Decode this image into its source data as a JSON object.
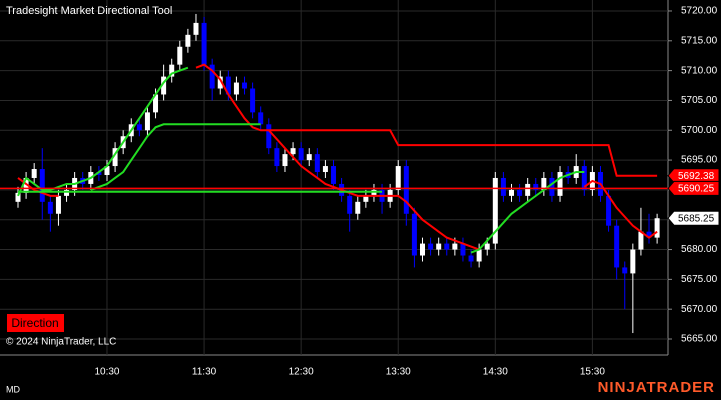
{
  "chart_data": {
    "type": "candlestick",
    "title": "Tradesight Market Directional Tool",
    "x": [
      null,
      null,
      null,
      null,
      null,
      null,
      null,
      null,
      null,
      null,
      null,
      "10:30",
      null,
      null,
      null,
      null,
      null,
      null,
      null,
      null,
      null,
      null,
      null,
      "11:30",
      null,
      null,
      null,
      null,
      null,
      null,
      null,
      null,
      null,
      null,
      null,
      "12:30",
      null,
      null,
      null,
      null,
      null,
      null,
      null,
      null,
      null,
      null,
      null,
      "13:30",
      null,
      null,
      null,
      null,
      null,
      null,
      null,
      null,
      null,
      null,
      null,
      "14:30",
      null,
      null,
      null,
      null,
      null,
      null,
      null,
      null,
      null,
      null,
      null,
      "15:30",
      null,
      null,
      null,
      null,
      null,
      null,
      null,
      null
    ],
    "open": [
      5688,
      5689.5,
      5692,
      5693.5,
      5688,
      5686,
      5689,
      5690,
      5692,
      5691,
      5693,
      5692.5,
      5694,
      5697,
      5699,
      5701,
      5700,
      5703,
      5706,
      5709,
      5711,
      5714,
      5716,
      5718,
      5711,
      5707,
      5709,
      5706,
      5708,
      5707,
      5703,
      5701,
      5697,
      5694,
      5696,
      5697,
      5695,
      5696,
      5693,
      5694,
      5691,
      5689,
      5686,
      5688,
      5689,
      5690,
      5688,
      5690,
      5694,
      5686,
      5679,
      5681,
      5680,
      5681,
      5680,
      5681,
      5679,
      5678,
      5680,
      5681,
      5692,
      5689,
      5690,
      5689,
      5691,
      5690,
      5692,
      5689,
      5693,
      5692,
      5694,
      5690,
      5693,
      5689,
      5684,
      5677,
      5676,
      5680,
      5683,
      5682
    ],
    "high": [
      5690.5,
      5693,
      5694.5,
      5697,
      5689,
      5690,
      5691,
      5693,
      5693,
      5694,
      5694,
      5695,
      5698,
      5700,
      5702,
      5702,
      5704,
      5707,
      5711,
      5712,
      5715,
      5717,
      5719.5,
      5719,
      5712,
      5710,
      5710,
      5709,
      5709,
      5708,
      5704,
      5702,
      5698,
      5697,
      5698,
      5698,
      5697,
      5697,
      5695,
      5695,
      5692,
      5690,
      5689,
      5690,
      5691,
      5691,
      5691,
      5695,
      5695,
      5687,
      5682,
      5682,
      5682,
      5682,
      5682,
      5682,
      5680,
      5681,
      5682,
      5693,
      5693,
      5691,
      5691,
      5692,
      5692,
      5693,
      5693,
      5694,
      5694,
      5696,
      5695,
      5694,
      5694,
      5690,
      5685,
      5678,
      5681,
      5687,
      5686,
      5686
    ],
    "low": [
      5687,
      5688.5,
      5691,
      5685,
      5683,
      5684,
      5688,
      5689,
      5690,
      5690,
      5691.5,
      5691.5,
      5693,
      5696,
      5698,
      5699,
      5699,
      5702,
      5705,
      5708,
      5710,
      5713,
      5715,
      5710,
      5705,
      5706,
      5705,
      5705,
      5706,
      5702,
      5700,
      5696,
      5693,
      5693,
      5695,
      5694,
      5694,
      5692,
      5692,
      5690,
      5688,
      5683,
      5685,
      5687,
      5688,
      5686,
      5687,
      5689,
      5684,
      5677,
      5678,
      5679,
      5679,
      5679,
      5679,
      5678,
      5677,
      5677,
      5679,
      5680,
      5688,
      5688,
      5688,
      5688,
      5689,
      5689,
      5688,
      5688,
      5691,
      5691,
      5689,
      5689,
      5688,
      5683,
      5675,
      5670,
      5666,
      5679,
      5681,
      5681
    ],
    "close": [
      5689.5,
      5692,
      5693.5,
      5688,
      5686,
      5689,
      5690,
      5692,
      5691,
      5693,
      5692.5,
      5694,
      5697,
      5699,
      5701,
      5700,
      5703,
      5706,
      5709,
      5711,
      5714,
      5716,
      5718,
      5711,
      5707,
      5709,
      5706,
      5708,
      5707,
      5703,
      5701,
      5697,
      5694,
      5696,
      5697,
      5695,
      5696,
      5693,
      5694,
      5691,
      5689,
      5686,
      5688,
      5689,
      5690,
      5688,
      5690,
      5694,
      5686,
      5679,
      5681,
      5680,
      5681,
      5680,
      5681,
      5679,
      5678,
      5680,
      5681,
      5692,
      5689,
      5690,
      5689,
      5691,
      5690,
      5692,
      5689,
      5693,
      5692,
      5694,
      5690,
      5693,
      5689,
      5684,
      5677,
      5676,
      5680,
      5683,
      5682,
      5685.25
    ],
    "up_color": "#ffffff",
    "down_color": "#0000ff",
    "lines": [
      {
        "color": "#ff0000",
        "values": [
          null,
          null,
          null,
          null,
          null,
          null,
          null,
          null,
          null,
          null,
          null,
          null,
          null,
          null,
          null,
          null,
          null,
          null,
          null,
          null,
          null,
          null,
          5710.5,
          5711,
          5710,
          5708.5,
          5706,
          5704,
          5702,
          5700.5,
          5700,
          5700,
          5700,
          5700,
          5700,
          5700,
          5700,
          5700,
          5700,
          5700,
          5700,
          5700,
          5700,
          5700,
          5700,
          5700,
          5700,
          5697.5,
          5697.5,
          5697.5,
          5697.5,
          5697.5,
          5697.5,
          5697.5,
          5697.5,
          5697.5,
          5697.5,
          5697.5,
          5697.5,
          5697.5,
          5697.5,
          5697.5,
          5697.5,
          5697.5,
          5697.5,
          5697.5,
          5697.5,
          5697.5,
          5697.5,
          5697.5,
          5697.5,
          5697.5,
          5697.5,
          5697.5,
          5692.38,
          5692.38,
          5692.38,
          5692.38,
          5692.38,
          5692.38
        ]
      },
      {
        "color": "#ff0000",
        "values": [
          5692,
          5691,
          5690,
          5689.5,
          5689,
          5689,
          null,
          null,
          null,
          null,
          null,
          null,
          null,
          null,
          null,
          null,
          null,
          null,
          null,
          null,
          null,
          null,
          null,
          null,
          null,
          null,
          null,
          null,
          null,
          null,
          null,
          5700,
          5698.5,
          5697,
          5695.5,
          5694,
          5693,
          5692,
          5691,
          5690.5,
          5690,
          5689.5,
          5689,
          5689,
          5689,
          5689,
          5689,
          5689,
          5688,
          5686.5,
          5685,
          5684,
          5683,
          5682,
          5681.5,
          5681,
          5680.5,
          5680,
          null,
          null,
          null,
          null,
          null,
          null,
          null,
          null,
          null,
          null,
          null,
          null,
          5690.5,
          5691.5,
          5691,
          5689,
          5687,
          5685.5,
          5684,
          5683,
          5682,
          5683
        ]
      },
      {
        "color": "#22dd22",
        "values": [
          5689,
          5692,
          5691,
          5690,
          5690,
          5690.5,
          5691,
          5691,
          5691.5,
          5692,
          5693,
          5694,
          5696,
          5698,
          5700,
          5702,
          5704,
          5706,
          5708,
          5709.5,
          5710,
          5710.5,
          null,
          null,
          null,
          null,
          null,
          null,
          null,
          null,
          null,
          null,
          null,
          null,
          null,
          null,
          null,
          null,
          null,
          null,
          null,
          null,
          null,
          null,
          null,
          null,
          null,
          null,
          null,
          null,
          null,
          null,
          null,
          null,
          null,
          null,
          null,
          null,
          null,
          null,
          null,
          null,
          null,
          null,
          null,
          null,
          null,
          null,
          null,
          null,
          null,
          null,
          null,
          null,
          null,
          null,
          null,
          null,
          null,
          null
        ]
      },
      {
        "color": "#22dd22",
        "values": [
          null,
          null,
          null,
          null,
          null,
          null,
          null,
          null,
          null,
          5690,
          5690.5,
          5691,
          5692,
          5693,
          5695,
          5697,
          5699,
          5700.5,
          5701,
          5701,
          5701,
          5701,
          5701,
          5701,
          5701,
          5701,
          5701,
          5701,
          5701,
          5701,
          5701,
          null,
          null,
          null,
          null,
          null,
          null,
          null,
          null,
          null,
          null,
          null,
          null,
          null,
          null,
          null,
          null,
          null,
          null,
          null,
          null,
          null,
          null,
          null,
          null,
          null,
          null,
          null,
          null,
          null,
          null,
          null,
          null,
          null,
          null,
          null,
          null,
          null,
          null,
          null,
          null,
          null,
          null,
          null,
          null,
          null,
          null,
          null,
          null,
          null
        ]
      },
      {
        "color": "#22dd22",
        "values": [
          5689.7,
          5689.7,
          5689.7,
          5689.7,
          5689.7,
          5689.7,
          5689.7,
          5689.7,
          5689.7,
          5689.7,
          5689.7,
          5689.7,
          5689.7,
          5689.7,
          5689.7,
          5689.7,
          5689.7,
          5689.7,
          5689.7,
          5689.7,
          5689.7,
          5689.7,
          5689.7,
          5689.7,
          5689.7,
          5689.7,
          5689.7,
          5689.7,
          5689.7,
          5689.7,
          5689.7,
          5689.7,
          5689.7,
          5689.7,
          5689.7,
          5689.7,
          5689.7,
          5689.7,
          5689.7,
          5689.7,
          5689.7,
          5689.7,
          5689.7,
          5689.7,
          5689.7,
          5689.7,
          null,
          null,
          null,
          null,
          null,
          null,
          null,
          null,
          null,
          null,
          null,
          null,
          null,
          null,
          null,
          null,
          null,
          null,
          null,
          null,
          null,
          null,
          null,
          null,
          null,
          null,
          null,
          null,
          null,
          null,
          null,
          null,
          null,
          null
        ]
      },
      {
        "color": "#22dd22",
        "values": [
          null,
          null,
          null,
          null,
          null,
          null,
          null,
          null,
          null,
          null,
          null,
          null,
          null,
          null,
          null,
          null,
          null,
          null,
          null,
          null,
          null,
          null,
          null,
          null,
          null,
          null,
          null,
          null,
          null,
          null,
          null,
          null,
          null,
          null,
          null,
          null,
          null,
          null,
          null,
          null,
          null,
          null,
          null,
          null,
          null,
          null,
          null,
          null,
          null,
          null,
          null,
          null,
          null,
          null,
          null,
          null,
          5679.5,
          5680,
          5681.5,
          5683,
          5684.5,
          5686,
          5687,
          5688,
          5689,
          5690,
          5691,
          5692,
          5692.5,
          5693,
          5693,
          null,
          null,
          null,
          null,
          null,
          null,
          null,
          null,
          null
        ]
      }
    ],
    "price_markers": [
      {
        "value": 5692.38,
        "color": "#ff0000",
        "text_color": "#ffffff",
        "line": false
      },
      {
        "value": 5690.25,
        "color": "#ff0000",
        "text_color": "#ffffff",
        "line": true
      },
      {
        "value": 5685.25,
        "color": "#ffffff",
        "text_color": "#000000",
        "line": false
      }
    ],
    "ylim": [
      5662.32,
      5721.84
    ],
    "yticks": [
      {
        "value": 5665,
        "label": "5665.00"
      },
      {
        "value": 5670,
        "label": "5670.00"
      },
      {
        "value": 5675,
        "label": "5675.00"
      },
      {
        "value": 5680,
        "label": "5680.00"
      },
      {
        "value": 5685,
        "label": "5685.00"
      },
      {
        "value": 5690,
        "label": "5690.00"
      },
      {
        "value": 5695,
        "label": "5695.00"
      },
      {
        "value": 5700,
        "label": "5700.00"
      },
      {
        "value": 5705,
        "label": "5705.00"
      },
      {
        "value": 5710,
        "label": "5710.00"
      },
      {
        "value": 5715,
        "label": "5715.00"
      },
      {
        "value": 5720,
        "label": "5720.00"
      }
    ],
    "grid": true
  },
  "button": "Direction",
  "copyright": "© 2024 NinjaTrader, LLC",
  "footer_left": "MD",
  "brand": "NINJATRADER"
}
